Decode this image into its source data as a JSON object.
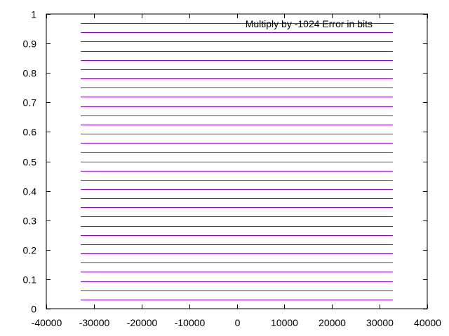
{
  "chart_data": {
    "type": "line",
    "title": "",
    "xlabel": "",
    "ylabel": "",
    "xlim": [
      -40000,
      40000
    ],
    "ylim": [
      0,
      1
    ],
    "x_ticks": [
      -40000,
      -30000,
      -20000,
      -10000,
      0,
      10000,
      20000,
      30000,
      40000
    ],
    "x_tick_labels": [
      "-40000",
      "-30000",
      "-20000",
      "-10000",
      "0",
      "10000",
      "20000",
      "30000",
      "40000"
    ],
    "y_ticks": [
      0,
      0.1,
      0.2,
      0.3,
      0.4,
      0.5,
      0.6,
      0.7,
      0.8,
      0.9,
      1
    ],
    "y_tick_labels": [
      "0",
      "0.1",
      "0.2",
      "0.3",
      "0.4",
      "0.5",
      "0.6",
      "0.7",
      "0.8",
      "0.9",
      "1"
    ],
    "grid": false,
    "legend_position": "top-right",
    "series": [
      {
        "name": "Multiply by -1024 Error in bits",
        "color": "#9400d3",
        "x_range": [
          -32768,
          32767
        ],
        "y_levels": [
          0.03125,
          0.0625,
          0.09375,
          0.125,
          0.15625,
          0.1875,
          0.21875,
          0.25,
          0.28125,
          0.3125,
          0.34375,
          0.375,
          0.40625,
          0.4375,
          0.46875,
          0.5,
          0.53125,
          0.5625,
          0.59375,
          0.625,
          0.65625,
          0.6875,
          0.71875,
          0.75,
          0.78125,
          0.8125,
          0.84375,
          0.875,
          0.90625,
          0.9375,
          0.96875
        ]
      }
    ]
  }
}
